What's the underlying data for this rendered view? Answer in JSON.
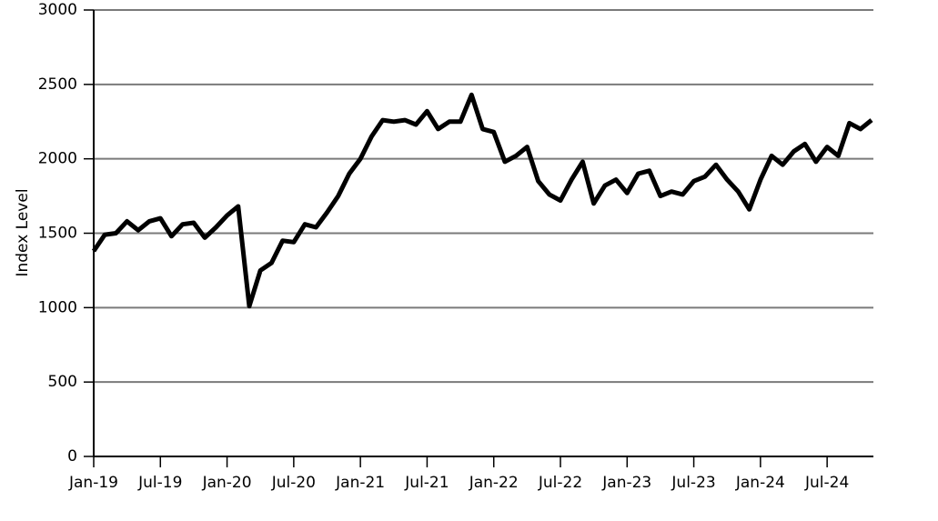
{
  "chart_data": {
    "type": "line",
    "y_label": "Index Level",
    "color": "#000000",
    "grid": true,
    "x": [
      "2019-01",
      "2019-02",
      "2019-03",
      "2019-04",
      "2019-05",
      "2019-06",
      "2019-07",
      "2019-08",
      "2019-09",
      "2019-10",
      "2019-11",
      "2019-12",
      "2020-01",
      "2020-02",
      "2020-03",
      "2020-04",
      "2020-05",
      "2020-06",
      "2020-07",
      "2020-08",
      "2020-09",
      "2020-10",
      "2020-11",
      "2020-12",
      "2021-01",
      "2021-02",
      "2021-03",
      "2021-04",
      "2021-05",
      "2021-06",
      "2021-07",
      "2021-08",
      "2021-09",
      "2021-10",
      "2021-11",
      "2021-12",
      "2022-01",
      "2022-02",
      "2022-03",
      "2022-04",
      "2022-05",
      "2022-06",
      "2022-07",
      "2022-08",
      "2022-09",
      "2022-10",
      "2022-11",
      "2022-12",
      "2023-01",
      "2023-02",
      "2023-03",
      "2023-04",
      "2023-05",
      "2023-06",
      "2023-07",
      "2023-08",
      "2023-09",
      "2023-10",
      "2023-11",
      "2023-12",
      "2024-01",
      "2024-02",
      "2024-03",
      "2024-04",
      "2024-05",
      "2024-06",
      "2024-07",
      "2024-08",
      "2024-09",
      "2024-10",
      "2024-11"
    ],
    "values": [
      1380,
      1490,
      1500,
      1580,
      1520,
      1580,
      1600,
      1480,
      1560,
      1570,
      1470,
      1540,
      1620,
      1680,
      1010,
      1250,
      1300,
      1450,
      1440,
      1560,
      1540,
      1640,
      1750,
      1900,
      2000,
      2150,
      2260,
      2250,
      2260,
      2230,
      2320,
      2200,
      2250,
      2250,
      2430,
      2200,
      2180,
      1980,
      2020,
      2080,
      1850,
      1760,
      1720,
      1860,
      1980,
      1700,
      1820,
      1860,
      1770,
      1900,
      1920,
      1750,
      1780,
      1760,
      1850,
      1880,
      1960,
      1860,
      1780,
      1660,
      1860,
      2020,
      1960,
      2050,
      2100,
      1980,
      2080,
      2020,
      2240,
      2200,
      2260
    ],
    "xlim": [
      "2019-01",
      "2024-11"
    ],
    "xticks": [
      {
        "value": "2019-01",
        "label": "Jan-19"
      },
      {
        "value": "2019-07",
        "label": "Jul-19"
      },
      {
        "value": "2020-01",
        "label": "Jan-20"
      },
      {
        "value": "2020-07",
        "label": "Jul-20"
      },
      {
        "value": "2021-01",
        "label": "Jan-21"
      },
      {
        "value": "2021-07",
        "label": "Jul-21"
      },
      {
        "value": "2022-01",
        "label": "Jan-22"
      },
      {
        "value": "2022-07",
        "label": "Jul-22"
      },
      {
        "value": "2023-01",
        "label": "Jan-23"
      },
      {
        "value": "2023-07",
        "label": "Jul-23"
      },
      {
        "value": "2024-01",
        "label": "Jan-24"
      },
      {
        "value": "2024-07",
        "label": "Jul-24"
      }
    ],
    "ylim": [
      0,
      3000
    ],
    "yticks": [
      0,
      500,
      1000,
      1500,
      2000,
      2500,
      3000
    ]
  }
}
